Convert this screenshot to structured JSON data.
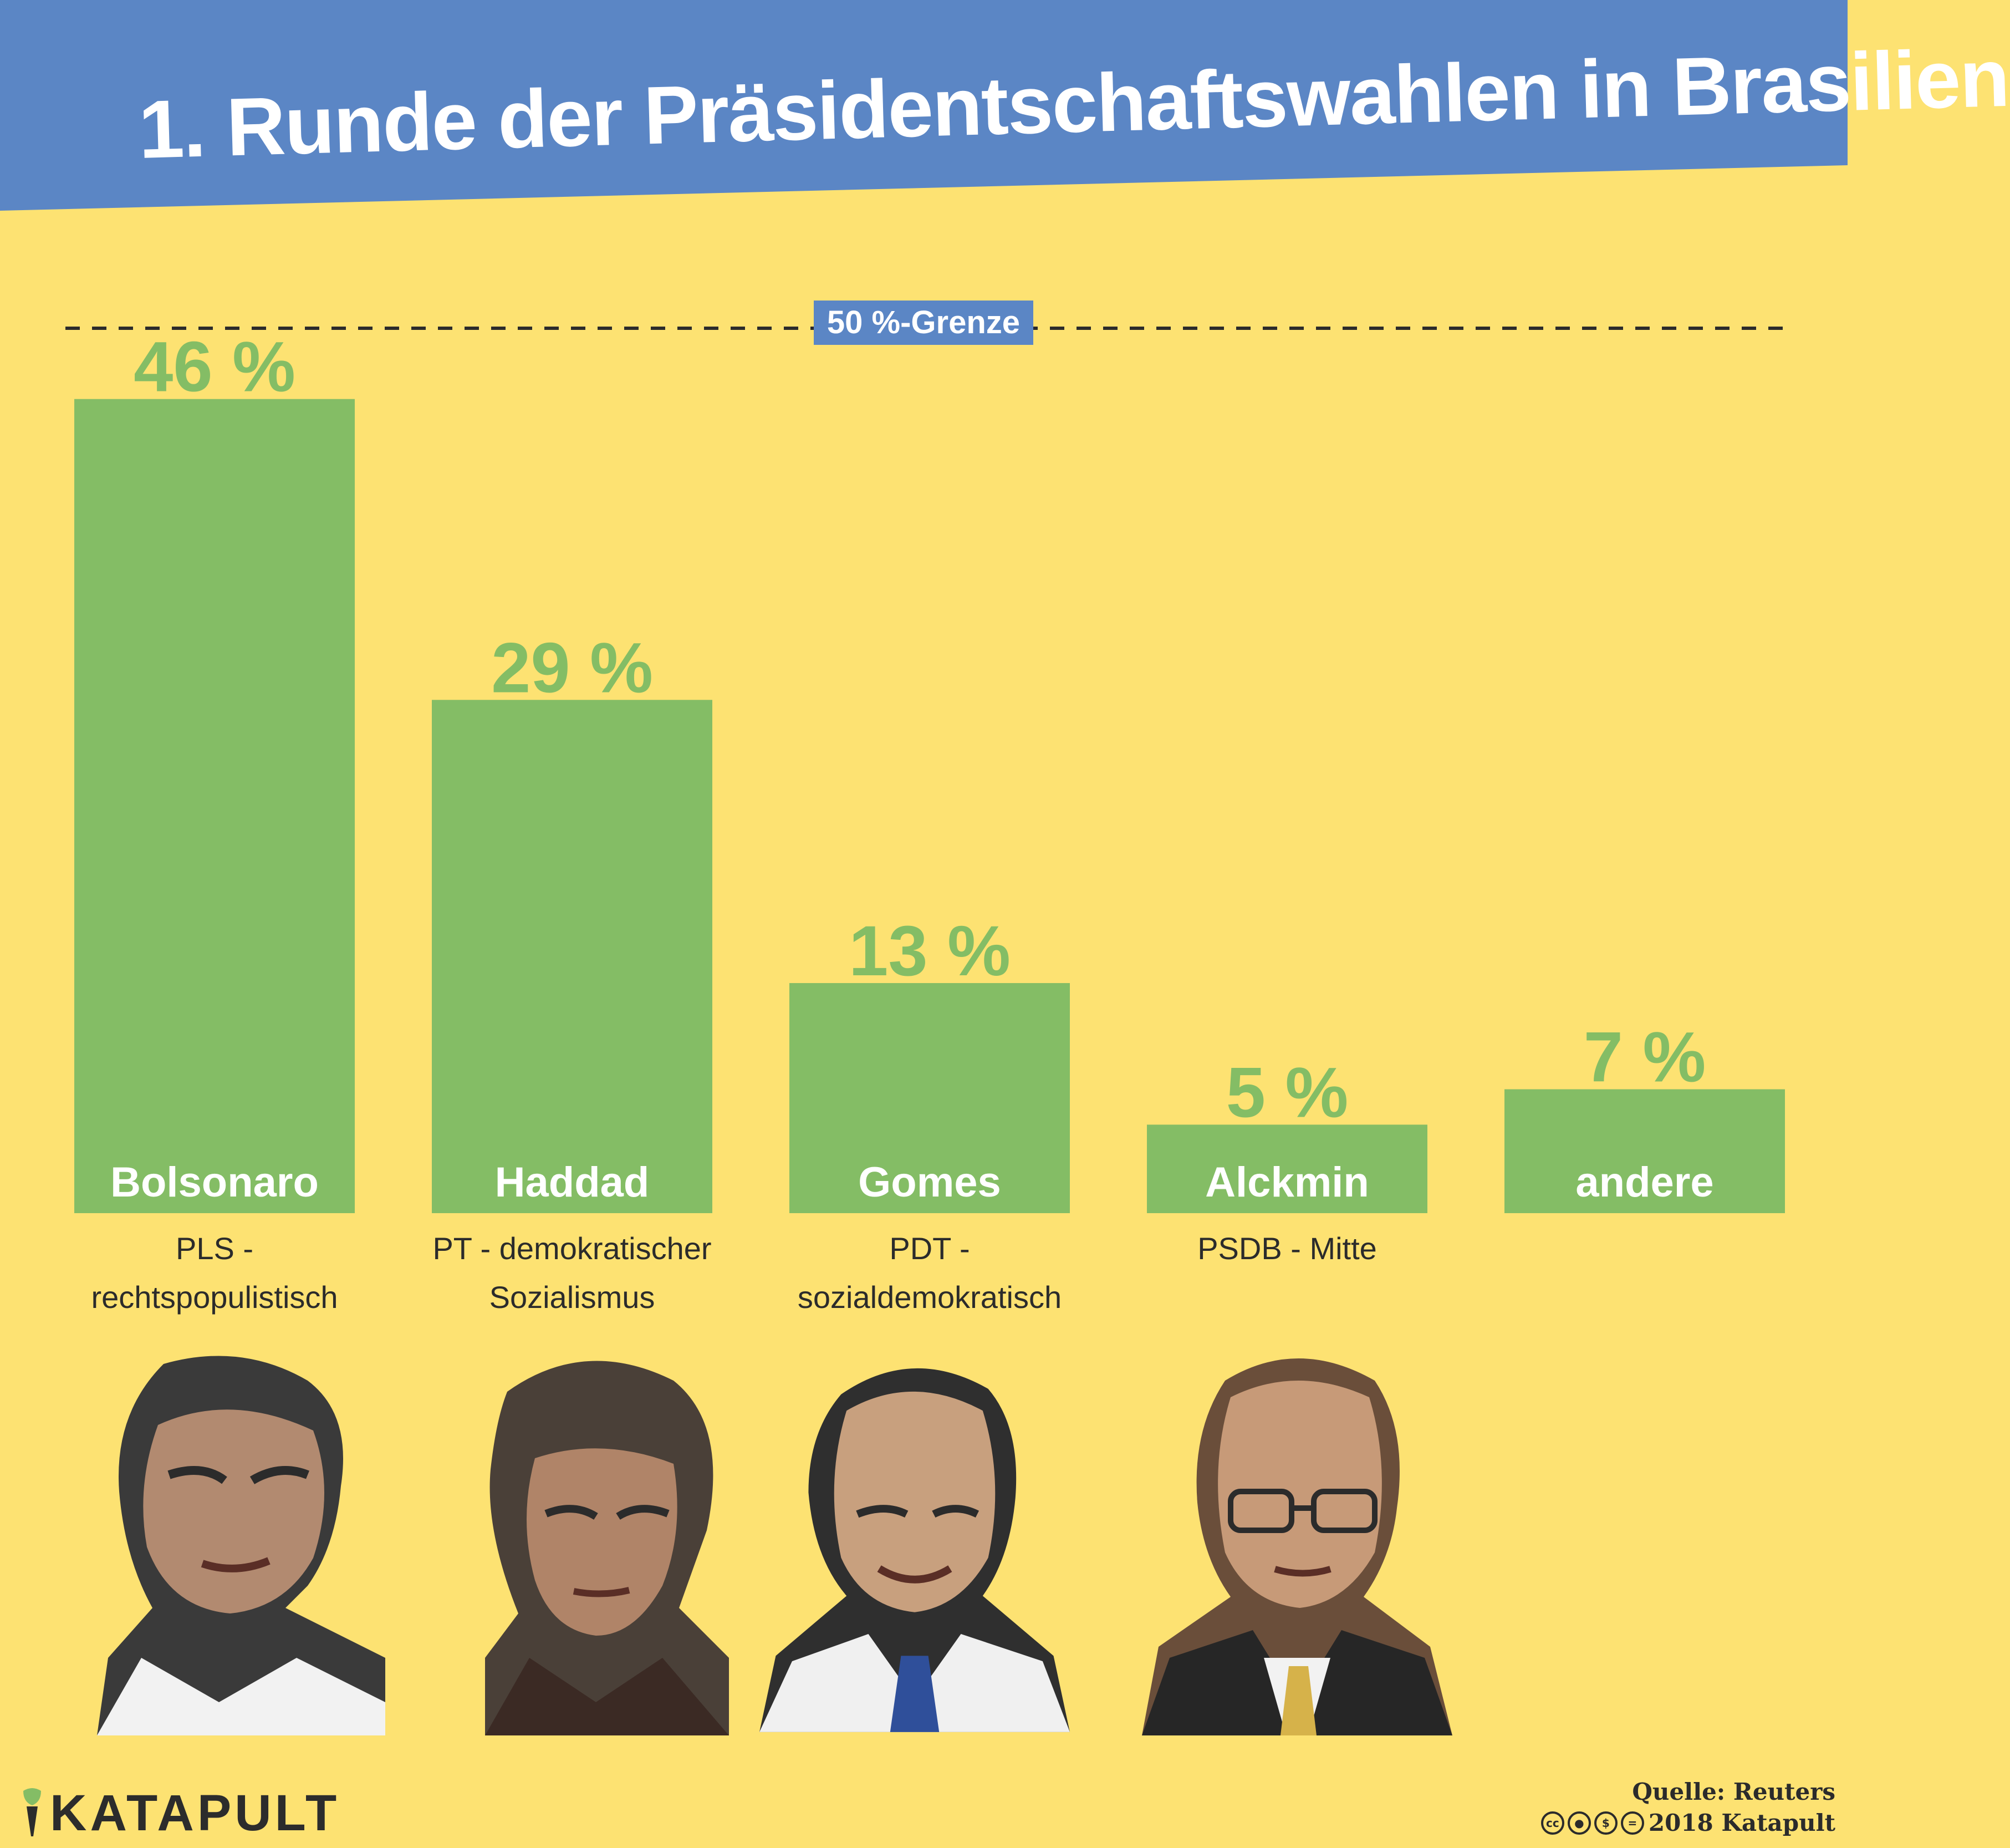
{
  "header": {
    "title": "1. Runde der Präsidentschaftswahlen in Brasilien"
  },
  "colors": {
    "background": "#fde272",
    "header": "#5b86c5",
    "bar": "#84bd65",
    "value_label": "#84bd65",
    "bar_label": "#ffffff",
    "text": "#2b2b2b"
  },
  "chart_data": {
    "type": "bar",
    "categories": [
      "Bolsonaro",
      "Haddad",
      "Gomes",
      "Alckmin",
      "andere"
    ],
    "values": [
      46,
      29,
      13,
      5,
      7
    ],
    "value_labels": [
      "46 %",
      "29 %",
      "13 %",
      "5 %",
      "7 %"
    ],
    "parties": [
      "PLS - rechtspopulistisch",
      "PT - demokratischer Sozialismus",
      "PDT - sozialdemokratisch",
      "PSDB - Mitte",
      ""
    ],
    "ylim": [
      0,
      50
    ],
    "threshold": {
      "value": 50,
      "label": "50 %-Grenze"
    },
    "grid": false
  },
  "portraits": [
    {
      "name": "Bolsonaro",
      "icon": "portrait-icon"
    },
    {
      "name": "Haddad",
      "icon": "portrait-icon"
    },
    {
      "name": "Gomes",
      "icon": "portrait-icon"
    },
    {
      "name": "Alckmin",
      "icon": "portrait-icon"
    }
  ],
  "footer": {
    "logo": "KATAPULT",
    "source": "Quelle: Reuters",
    "copyright": "2018 Katapult",
    "license_icons": [
      "cc-icon",
      "by-icon",
      "nc-icon",
      "nd-icon"
    ]
  }
}
